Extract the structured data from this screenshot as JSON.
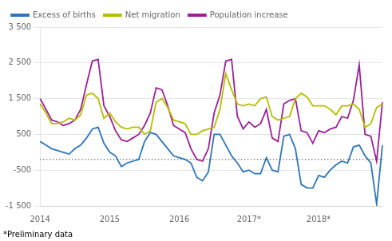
{
  "chart_data": {
    "type": "line",
    "footnote": "*Preliminary data",
    "legend": "upper left",
    "grid": "y",
    "categories": [
      "2014",
      null,
      null,
      null,
      null,
      null,
      null,
      null,
      null,
      null,
      null,
      null,
      "2015",
      null,
      null,
      null,
      null,
      null,
      null,
      null,
      null,
      null,
      null,
      null,
      "2016",
      null,
      null,
      null,
      null,
      null,
      null,
      null,
      null,
      null,
      null,
      null,
      "2017*",
      null,
      null,
      null,
      null,
      null,
      null,
      null,
      null,
      null,
      null,
      null,
      "2018*",
      null,
      null,
      null,
      null,
      null,
      null,
      null,
      null,
      null,
      null,
      null
    ],
    "ylim": [
      -1500,
      3500
    ],
    "yticks": [
      {
        "value": -1500,
        "label": "-1 500"
      },
      -500,
      500,
      {
        "value": 1500,
        "label": "1 500"
      },
      {
        "value": 2500,
        "label": "2 500"
      },
      {
        "value": 3500,
        "label": "3 500"
      }
    ],
    "reference_line": {
      "y": -200,
      "line_style": "dotted",
      "color": "#000000"
    },
    "series": [
      {
        "name": "Excess of births",
        "color": "#2e75b6",
        "values": [
          300,
          200,
          100,
          50,
          0,
          -50,
          100,
          200,
          400,
          650,
          700,
          250,
          0,
          -100,
          -400,
          -300,
          -250,
          -200,
          300,
          550,
          500,
          300,
          100,
          -100,
          -150,
          -200,
          -300,
          -700,
          -800,
          -550,
          500,
          500,
          200,
          -100,
          -300,
          -550,
          -500,
          -600,
          -600,
          -150,
          -500,
          -550,
          450,
          500,
          100,
          -900,
          -1000,
          -1000,
          -650,
          -700,
          -500,
          -350,
          -250,
          -300,
          150,
          200,
          -100,
          -300,
          -1450,
          200
        ]
      },
      {
        "name": "Net migration",
        "color": "#b5bd00",
        "values": [
          1350,
          1100,
          800,
          800,
          850,
          950,
          900,
          1050,
          1600,
          1650,
          1500,
          950,
          1100,
          850,
          700,
          650,
          700,
          700,
          500,
          600,
          1400,
          1500,
          1250,
          900,
          850,
          800,
          500,
          500,
          600,
          650,
          700,
          1200,
          2200,
          1750,
          1350,
          1300,
          1350,
          1300,
          1500,
          1550,
          1000,
          900,
          950,
          1000,
          1500,
          1650,
          1550,
          1300,
          1300,
          1300,
          1200,
          1050,
          1300,
          1300,
          1350,
          1200,
          700,
          800,
          1250,
          1350
        ]
      },
      {
        "name": "Population increase",
        "color": "#9b1f96",
        "values": [
          1500,
          1200,
          900,
          850,
          750,
          800,
          900,
          1200,
          1900,
          2550,
          2600,
          1300,
          1000,
          600,
          350,
          300,
          400,
          500,
          750,
          1100,
          1800,
          1750,
          1300,
          750,
          650,
          550,
          100,
          -200,
          -250,
          100,
          1100,
          1600,
          2550,
          2600,
          1000,
          650,
          850,
          700,
          800,
          1200,
          400,
          300,
          1350,
          1450,
          1500,
          600,
          550,
          250,
          600,
          550,
          650,
          700,
          1000,
          950,
          1450,
          2450,
          500,
          450,
          -250,
          1400
        ]
      }
    ]
  }
}
